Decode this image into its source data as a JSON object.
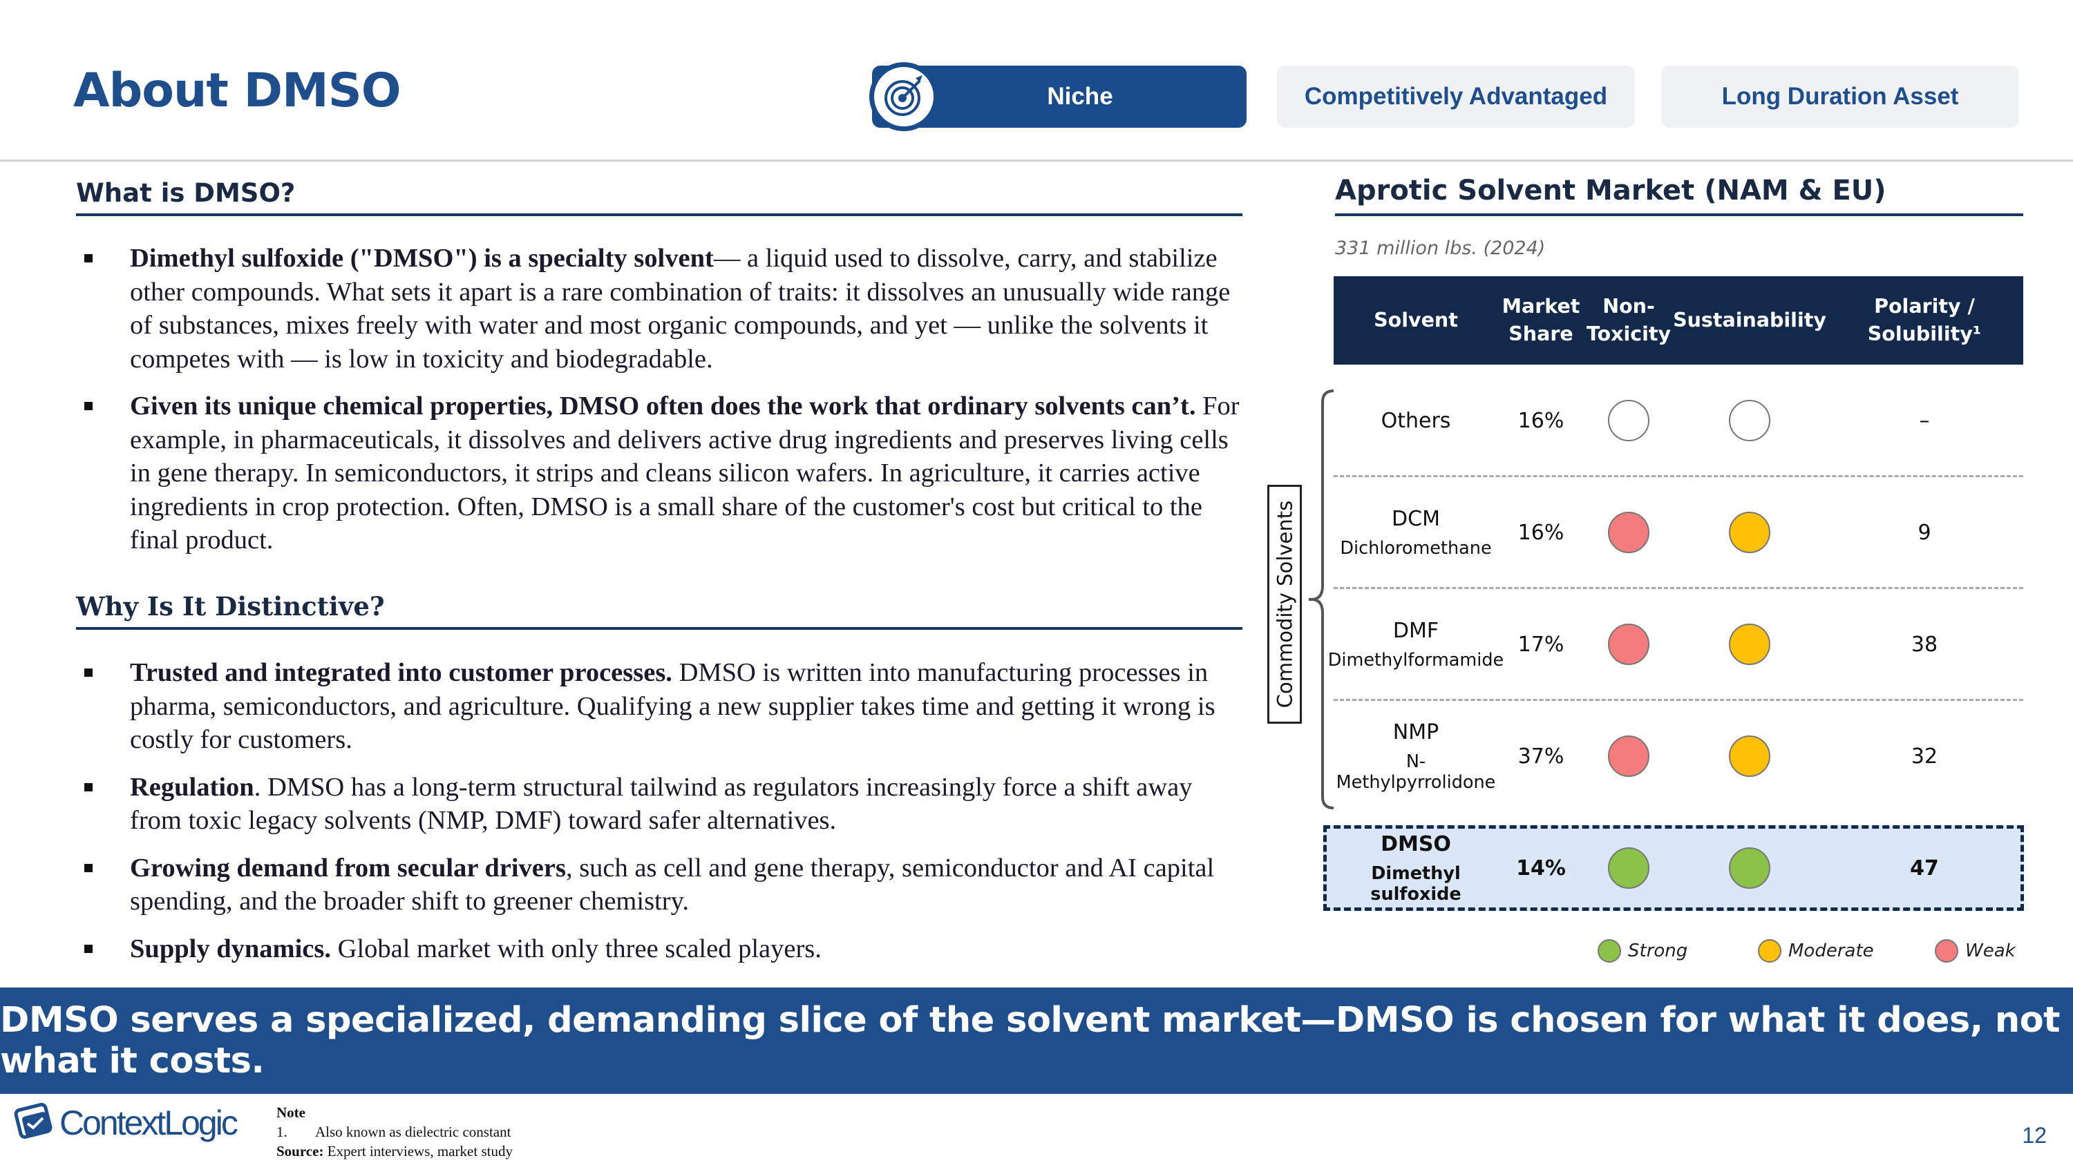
{
  "header": {
    "title": "About DMSO",
    "tabs": [
      {
        "label": "Niche",
        "active": true
      },
      {
        "label": "Competitively Advantaged",
        "active": false
      },
      {
        "label": "Long Duration Asset",
        "active": false
      }
    ]
  },
  "what": {
    "heading": "What is DMSO?",
    "bullets": [
      {
        "bold": "Dimethyl sulfoxide (\"DMSO\") is a specialty solvent",
        "text": "— a liquid used to dissolve, carry, and stabilize other compounds. What sets it apart is a rare combination of traits: it dissolves an unusually wide range of substances, mixes freely with water and most organic compounds, and yet — unlike the solvents it competes with — is low in toxicity and biodegradable."
      },
      {
        "bold": "Given its unique chemical properties, DMSO often does the work that ordinary solvents can’t.",
        "text": " For example, in pharmaceuticals, it dissolves and delivers active drug ingredients and preserves living cells in gene therapy. In semiconductors, it strips and cleans silicon wafers. In agriculture, it carries active ingredients in crop protection. Often, DMSO is a small share of the customer's cost but critical to the final product."
      }
    ]
  },
  "why": {
    "heading": "Why Is It Distinctive?",
    "bullets": [
      {
        "bold": "Trusted and integrated into customer processes.",
        "text": " DMSO is written into manufacturing processes in pharma, semiconductors, and agriculture. Qualifying a new supplier takes time and getting it wrong is costly for customers."
      },
      {
        "bold": "Regulation",
        "text": ". DMSO has a long-term structural tailwind as regulators increasingly force a shift away from toxic legacy solvents (NMP, DMF) toward safer alternatives."
      },
      {
        "bold": "Growing demand from secular drivers",
        "text": ", such as cell and gene therapy, semiconductor and AI capital spending, and the broader shift to greener chemistry."
      },
      {
        "bold": "Supply dynamics.",
        "text": " Global market with only three scaled players."
      }
    ]
  },
  "market": {
    "title": "Aprotic Solvent Market (NAM & EU)",
    "subtitle": "331 million lbs. (2024)",
    "columns": [
      "Solvent",
      "Market Share",
      "Non-Toxicity",
      "Sustainability",
      "Polarity / Solubility¹"
    ],
    "bracket_label": "Commodity Solvents",
    "rows": [
      {
        "name": "Others",
        "sci": "",
        "share": "16%",
        "toxicity": "none",
        "sustainability": "none",
        "polarity": "–"
      },
      {
        "name": "DCM",
        "sci": "Dichloromethane",
        "share": "16%",
        "toxicity": "weak",
        "sustainability": "moderate",
        "polarity": "9"
      },
      {
        "name": "DMF",
        "sci": "Dimethylformamide",
        "share": "17%",
        "toxicity": "weak",
        "sustainability": "moderate",
        "polarity": "38"
      },
      {
        "name": "NMP",
        "sci": "N-Methylpyrrolidone",
        "share": "37%",
        "toxicity": "weak",
        "sustainability": "moderate",
        "polarity": "32"
      },
      {
        "name": "DMSO",
        "sci": "Dimethyl sulfoxide",
        "share": "14%",
        "toxicity": "strong",
        "sustainability": "strong",
        "polarity": "47"
      }
    ],
    "legend": [
      {
        "key": "strong",
        "label": "Strong"
      },
      {
        "key": "moderate",
        "label": "Moderate"
      },
      {
        "key": "weak",
        "label": "Weak"
      }
    ],
    "colors": {
      "strong": "#8bc34a",
      "moderate": "#ffc107",
      "weak": "#f47c7c",
      "none": "#ffffff"
    }
  },
  "banner": {
    "text": "DMSO serves a specialized, demanding slice of the solvent market—DMSO is chosen for what it does, not what it costs."
  },
  "footer": {
    "logo_text": "ContextLogic",
    "note_label": "Note",
    "note_num": "1.",
    "note_text": "Also known as dielectric constant",
    "source_label": "Source:",
    "source_text": " Expert interviews, market study",
    "page": "12"
  }
}
